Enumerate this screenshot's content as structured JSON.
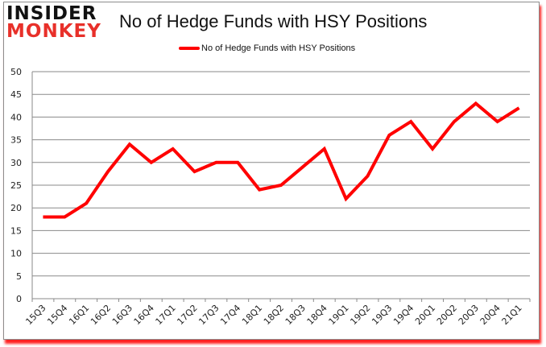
{
  "logo": {
    "line1": "INSIDER",
    "line2": "MONKEY"
  },
  "chart_data": {
    "type": "line",
    "title": "No of Hedge Funds with HSY Positions",
    "xlabel": "",
    "ylabel": "",
    "ylim": [
      0,
      50
    ],
    "yticks": [
      0,
      5,
      10,
      15,
      20,
      25,
      30,
      35,
      40,
      45,
      50
    ],
    "grid": true,
    "legend_position": "top",
    "categories": [
      "15Q3",
      "15Q4",
      "16Q1",
      "16Q2",
      "16Q3",
      "16Q4",
      "17Q1",
      "17Q2",
      "17Q3",
      "17Q4",
      "18Q1",
      "18Q2",
      "18Q3",
      "18Q4",
      "19Q1",
      "19Q2",
      "19Q3",
      "19Q4",
      "20Q1",
      "20Q2",
      "20Q3",
      "20Q4",
      "21Q1"
    ],
    "series": [
      {
        "name": "No of Hedge Funds with HSY Positions",
        "color": "#ff0000",
        "values": [
          18,
          18,
          21,
          28,
          34,
          30,
          33,
          28,
          30,
          30,
          24,
          25,
          29,
          33,
          22,
          27,
          36,
          39,
          33,
          39,
          43,
          39,
          42
        ]
      }
    ]
  }
}
